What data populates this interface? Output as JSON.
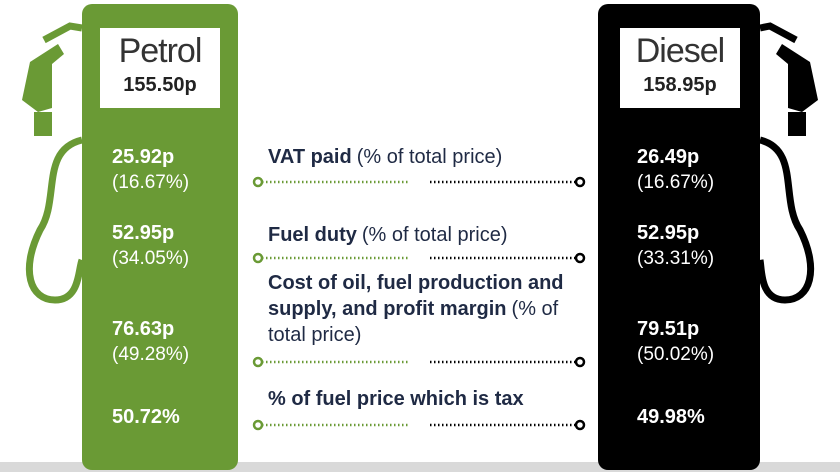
{
  "pumps": [
    {
      "name": "Petrol",
      "price": "155.50p",
      "items": [
        {
          "amount": "25.92p",
          "share": "(16.67%)"
        },
        {
          "amount": "52.95p",
          "share": "(34.05%)"
        },
        {
          "amount": "76.63p",
          "share": "(49.28%)"
        }
      ],
      "tax": "50.72%"
    },
    {
      "name": "Diesel",
      "price": "158.95p",
      "items": [
        {
          "amount": "26.49p",
          "share": "(16.67%)"
        },
        {
          "amount": "52.95p",
          "share": "(33.31%)"
        },
        {
          "amount": "79.51p",
          "share": "(50.02%)"
        }
      ],
      "tax": "49.98%"
    }
  ],
  "components": [
    {
      "label": "VAT paid",
      "note": "(% of total price)"
    },
    {
      "label": "Fuel duty",
      "note": "(% of total price)"
    },
    {
      "label": "Cost of oil, fuel production and supply, and profit margin",
      "note": "(% of total price)"
    },
    {
      "label": "% of fuel price which is tax"
    }
  ]
}
